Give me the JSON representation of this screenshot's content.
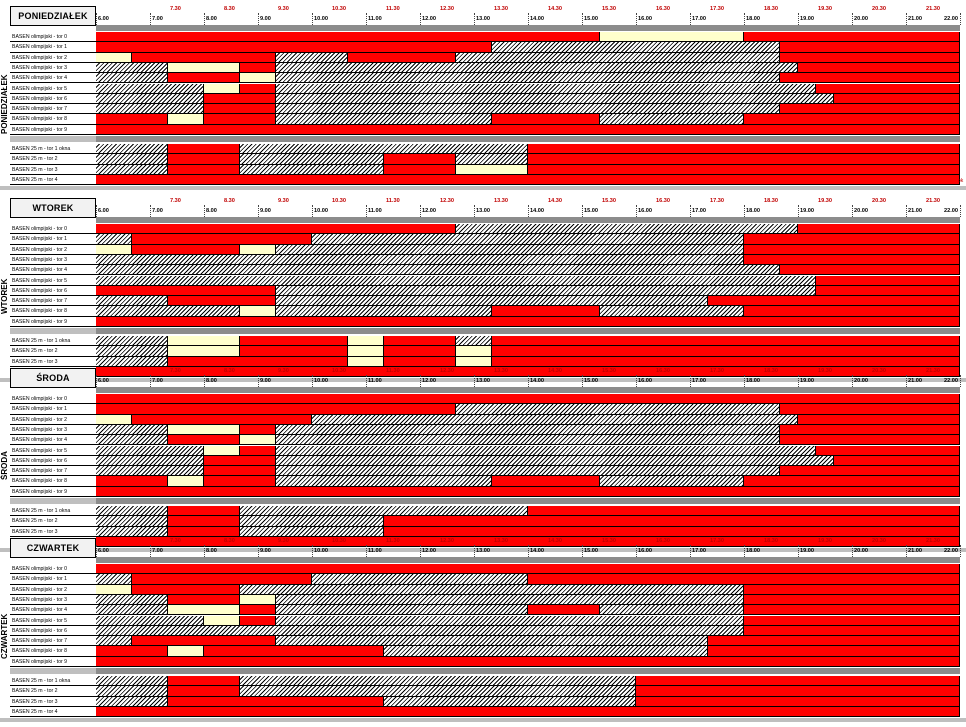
{
  "hours": [
    "6.00",
    "7.00",
    "8.00",
    "9.00",
    "10.00",
    "11.00",
    "12.00",
    "13.00",
    "14.00",
    "15.00",
    "16.00",
    "17.00",
    "18.00",
    "19.00",
    "20.00",
    "21.00",
    "22.00"
  ],
  "half_hours": [
    "7.30",
    "8.30",
    "9.30",
    "10.30",
    "11.30",
    "12.30",
    "13.30",
    "14.30",
    "15.30",
    "16.30",
    "17.30",
    "18.30",
    "19.30",
    "20.30",
    "21.30"
  ],
  "lanes_olympic": [
    "BASEN olimpijski - tor 0",
    "BASEN olimpijski - tor 1",
    "BASEN olimpijski - tor 2",
    "BASEN olimpijski - tor 3",
    "BASEN olimpijski - tor 4",
    "BASEN olimpijski - tor 5",
    "BASEN olimpijski - tor 6",
    "BASEN olimpijski - tor 7",
    "BASEN olimpijski - tor 8",
    "BASEN olimpijski - tor 9"
  ],
  "lanes_25m": [
    "BASEN 25 m - tor 1 okna",
    "BASEN 25 m - tor 2",
    "BASEN 25 m - tor 3",
    "BASEN 25 m - tor 4"
  ],
  "legend_colors": {
    "red": "#ff0000",
    "cream": "#ffffcc",
    "white": "#ffffff",
    "hatch": "#000000",
    "header_grey": "#8c8c8c"
  },
  "side_note": "ok",
  "days": [
    {
      "name": "PONIEDZIAŁEK",
      "olympic": [
        "rrrrrrrrrrrrrrrrrrrrrrrrrrrryyyyyyyyrrrrrrrrrrrr",
        "rrrrrrrrrrrrrrrrrrrrrrhhhhhhhhhhhhhhhhrrrrrrrrrr",
        "yyrrrrrrrrhhhhrrrrrrhhhhhhhhhhhhhhhhhhrrrrrrrrrr",
        "hhhhyyyyrrhhhhhhhhhhhhhhhhhhhhhhhhhhhhhrrrrrrrrr",
        "hhhhrrrryyhhhhhhhhhhhhhhhhhhhhhhhhhhhhrrrrrrrrrr",
        "hhhhhhyyrrhhhhhhhhhhhhhhhhhhhhhhhhhhhhhhrrrrrrrr",
        "hhhhhhrrrrhhhhhhhhhhhhhhhhhhhhhhhhhhhhhhhrrrrrrr",
        "hhhhhhrrrrhhhhhhhhhhhhhhhhhhhhhhhhhhhhrrrrrrrrrr",
        "rrrryyrrrrhhhhhhhhhhhhrrrrrrhhhhhhhhrrrrrrrrrrrr",
        "rrrrrrrrrrrrrrrrrrrrrrrrrrrrrrrrrrrrrrrrrrrrrrrr"
      ],
      "pool25": [
        "hhhhrrrrhhhhhhhhhhhhhhhhrrrrrrrrrrrrrrrrrrrrrrrr",
        "hhhhrrrrhhhhhhhhrrrrhhhhrrrrrrrrrrrrrrrrrrrrrrrr",
        "hhhhrrrrhhhhhhhhrrrryyyyrrrrrrrrrrrrrrrrrrrrrrrr",
        "rrrrrrrrrrrrrrrrrrrrrrrrrrrrrrrrrrrrrrrrrrrrrrrr"
      ]
    },
    {
      "name": "WTOREK",
      "olympic": [
        "rrrrrrrrrrrrrrrrrrrrhhhhhhhhhhhhhhhhhhhrrrrrrrrr",
        "hhrrrrrrrrrrhhhhhhhhhhhhhhhhhhhhhhhhrrrrrrrrrrrr",
        "yyrrrrrryyhhhhhhhhhhhhhhhhhhhhhhhhhhrrrrrrrrrrrr",
        "hhhhhhhhhhhhhhhhhhhhhhhhhhhhhhhhhhhhrrrrrrrrrrrr",
        "hhhhhhhhhhhhhhhhhhhhhhhhhhhhhhhhhhhhhhrrrrrrrrrr",
        "hhhhhhhhhhhhhhhhhhhhhhhhhhhhhhhhhhhhhhhhrrrrrrrr",
        "rrrrrrrrrrhhhhhhhhhhhhhhhhhhhhhhhhhhhhhhrrrrrrrr",
        "hhhhrrrrrrhhhhhhhhhhhhhhhhhhhhhhhhrrrrrrrrrrrrrr",
        "hhhhhhhhyyhhhhhhhhhhhhrrrrrrhhhhhhhhrrrrrrrrrrrr",
        "rrrrrrrrrrrrrrrrrrrrrrrrrrrrrrrrrrrrrrrrrrrrrrrr"
      ],
      "pool25": [
        "hhhhyyyyrrrrrryyrrrrhhrrrrrrrrrrrrrrrrrrrrrrrrrr",
        "hhhhyyyyrrrrrryyrrrryyrrrrrrrrrrrrrrrrrrrrrrrrrr",
        "hhhhrrrrrrrrrryyrrrryyrrrrrrrrrrrrrrrrrrrrrrrrrr",
        "rrrrrrrrrrrrrrrrrrrrrrrrrrrrrrrrrrrrrrrrrrrrrrrr"
      ]
    },
    {
      "name": "ŚRODA",
      "olympic": [
        "rrrrrrrrrrrrrrrrrrrrrrrrrrrrrrrrrrrrrrrrrrrrrrrr",
        "rrrrrrrrrrrrrrrrrrrrhhhhhhhhhhhhhhhhhhrrrrrrrrrr",
        "yyrrrrrrrrrrhhhhhhhhhhhhhhhhhhhhhhhhhhhrrrrrrrrr",
        "hhhhyyyyrrhhhhhhhhhhhhhhhhhhhhhhhhhhhhrrrrrrrrrr",
        "hhhhrrrryyhhhhhhhhhhhhhhhhhhhhhhhhhhhhrrrrrrrrrr",
        "hhhhhhyyrrhhhhhhhhhhhhhhhhhhhhhhhhhhhhhhrrrrrrrr",
        "hhhhhhrrrrhhhhhhhhhhhhhhhhhhhhhhhhhhhhhhhrrrrrrr",
        "hhhhhhrrrrhhhhhhhhhhhhhhhhhhhhhhhhhhhhrrrrrrrrrr",
        "rrrryyrrrrhhhhhhhhhhhhrrrrrrhhhhhhhhrrrrrrrrrrrr",
        "rrrrrrrrrrrrrrrrrrrrrrrrrrrrrrrrrrrrrrrrrrrrrrrr"
      ],
      "pool25": [
        "hhhhrrrrhhhhhhhhhhhhhhhhrrrrrrrrrrrrrrrrrrrrrrrr",
        "hhhhrrrrhhhhhhhhrrrrrrrrrrrrrrrrrrrrrrrrrrrrrrrr",
        "hhhhrrrrhhhhhhhhrrrrrrrrrrrrrrrrrrrrrrrrrrrrrrrr",
        "rrrrrrrrrrrrrrrrrrrrrrrrrrrrrrrrrrrrrrrrrrrrrrrr"
      ]
    },
    {
      "name": "CZWARTEK",
      "olympic": [
        "rrrrrrrrrrrrrrrrrrrrrrrrrrrrrrrrrrrrrrrrrrrrrrrr",
        "hhrrrrrrrrrrhhhhhhhhhhhhrrrrrrrrrrrrrrrrrrrrrrrr",
        "yyrrrrrrhhhhhhhhhhhhhhhhhhhhhhhhhhhhrrrrrrrrrrrr",
        "hhhhrrrryyhhhhhhhhhhhhhhhhhhhhhhhhhhrrrrrrrrrrrr",
        "hhhhyyyyrrhhhhhhhhhhhhhhrrrrhhhhhhhhrrrrrrrrrrrr",
        "hhhhhhyyrrhhhhhhhhhhhhhhhhhhhhhhhhhhrrrrrrrrrrrr",
        "hhhhhhhhhhhhhhhhhhhhhhhhhhhhhhhhhhhhrrrrrrrrrrrr",
        "hhrrrrrrrrhhhhhhhhhhhhhhhhhhhhhhhhrrrrrrrrrrrrrr",
        "rrrryyrrrrrrrrrrhhhhhhhhhhhhhhhhhhrrrrrrrrrrrrrr",
        "rrrrrrrrrrrrrrrrrrrrrrrrrrrrrrrrrrrrrrrrrrrrrrrr"
      ],
      "pool25": [
        "hhhhrrrrhhhhhhhhhhhhhhhhhhhhhhrrrrrrrrrrrrrrrrrr",
        "hhhhrrrrhhhhhhhhhhhhhhhhhhhhhhrrrrrrrrrrrrrrrrrr",
        "hhhhrrrrrrrrrrrrhhhhhhhhhhhhhhrrrrrrrrrrrrrrrrrr",
        "rrrrrrrrrrrrrrrrrrrrrrrrrrrrrrrrrrrrrrrrrrrrrrrr"
      ]
    }
  ]
}
